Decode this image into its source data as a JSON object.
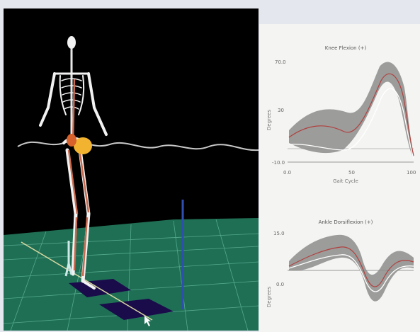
{
  "viewer": {
    "scene": "gait-simulation",
    "colors": {
      "background": "#000000",
      "floor": "#1f6f55",
      "grid": "#62b89a",
      "bones": "#ffffff",
      "muscle": "#c96a4e",
      "joint_marker": "#f2b430",
      "force_vector": "#2e4fb0",
      "force_plates": "#1a0b4a",
      "trajectory": "#bfbfbf"
    }
  },
  "charts": [
    {
      "title": "Knee Flexion (+)",
      "ylabel": "Degrees",
      "xlabel": "Gait Cycle",
      "ytick_top": "70.0",
      "ytick_mid": "30",
      "ytick_bottom": "-10.0",
      "xtick_start": "0.0",
      "xtick_mid": "50",
      "xtick_end": "100"
    },
    {
      "title": "Ankle Dorsiflexion (+)",
      "ylabel": "Degrees",
      "xlabel": "",
      "ytick_top": "15.0",
      "ytick_mid": "0.0",
      "ytick_bottom": "",
      "xtick_start": "",
      "xtick_mid": "",
      "xtick_end": ""
    }
  ]
}
